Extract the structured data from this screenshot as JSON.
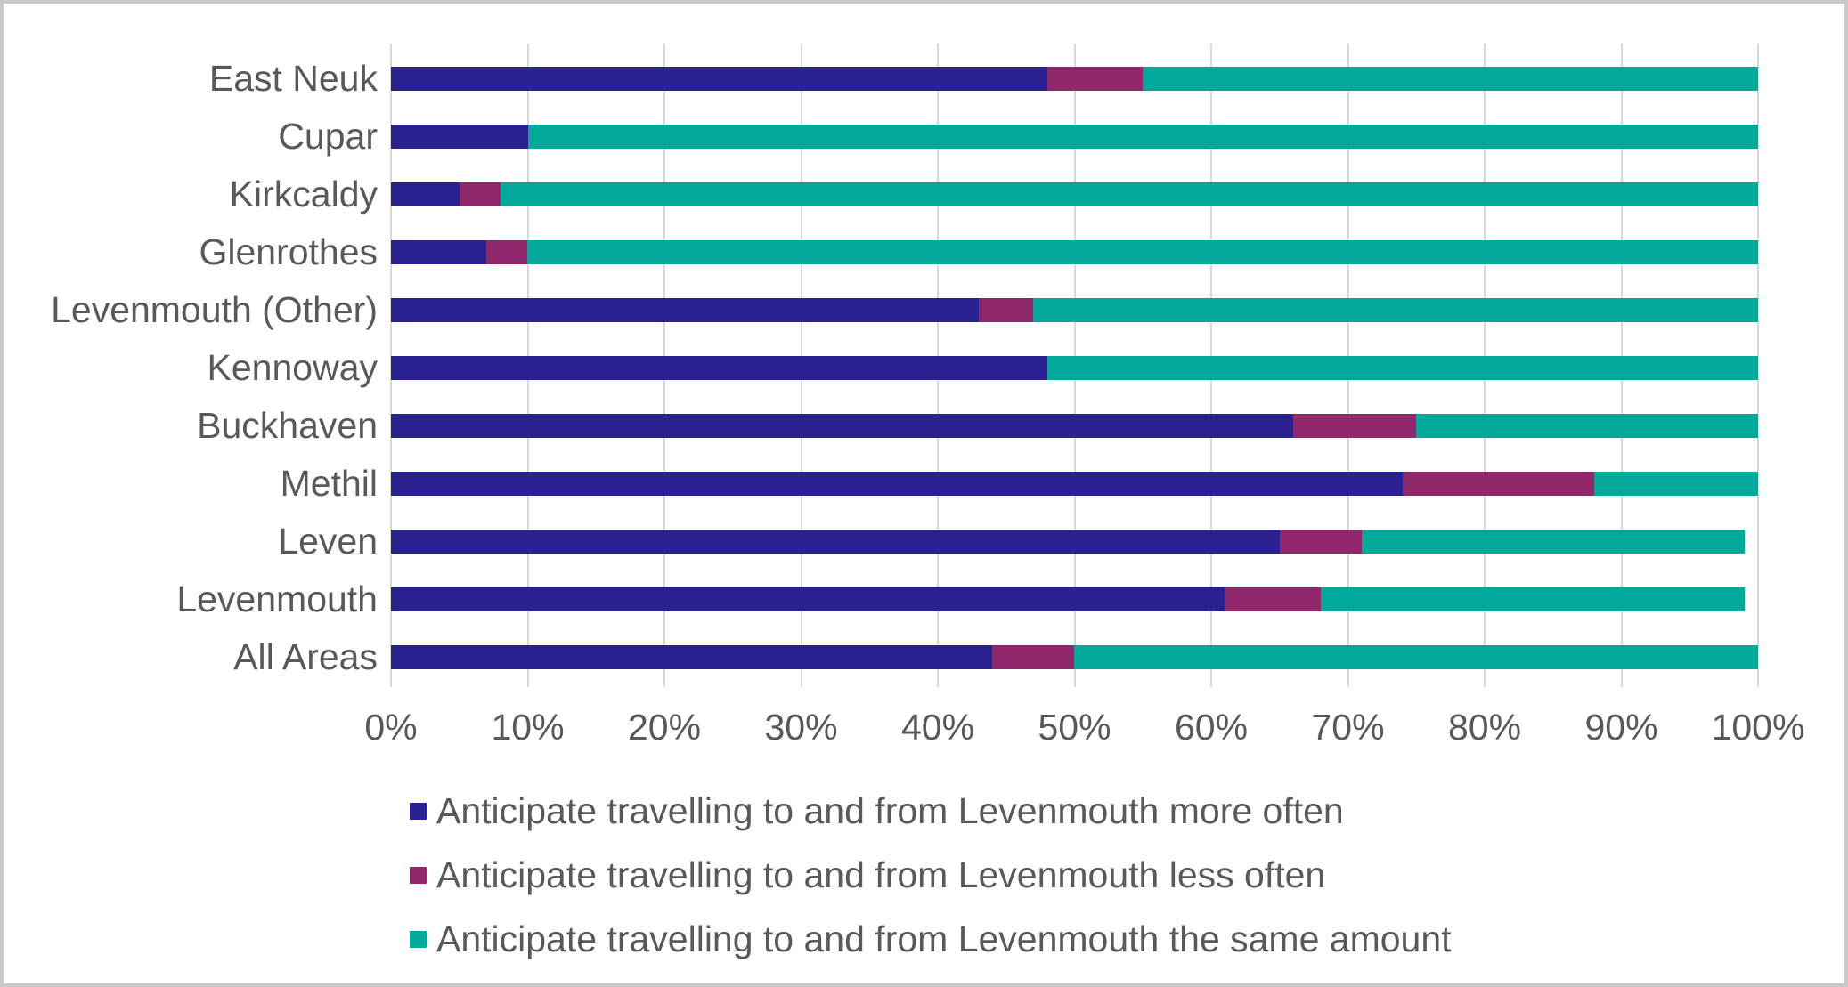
{
  "chart_data": {
    "type": "bar",
    "orientation": "horizontal",
    "stacked": true,
    "value_unit": "percent",
    "categories": [
      "East Neuk",
      "Cupar",
      "Kirkcaldy",
      "Glenrothes",
      "Levenmouth (Other)",
      "Kennoway",
      "Buckhaven",
      "Methil",
      "Leven",
      "Levenmouth",
      "All Areas"
    ],
    "series": [
      {
        "name": "Anticipate travelling to and from Levenmouth more often",
        "color": "#28218F",
        "values": [
          48,
          10,
          5,
          7,
          43,
          48,
          66,
          74,
          65,
          61,
          44
        ]
      },
      {
        "name": "Anticipate travelling to and from Levenmouth less often",
        "color": "#90296C",
        "values": [
          7,
          0,
          3,
          3,
          4,
          0,
          9,
          14,
          6,
          7,
          6
        ]
      },
      {
        "name": "Anticipate travelling to and from Levenmouth the same amount",
        "color": "#00A99A",
        "values": [
          45,
          90,
          92,
          90,
          53,
          52,
          25,
          12,
          28,
          31,
          50
        ]
      }
    ],
    "x_tick_labels": [
      "0%",
      "10%",
      "20%",
      "30%",
      "40%",
      "50%",
      "60%",
      "70%",
      "80%",
      "90%",
      "100%"
    ],
    "xlim": [
      0,
      100
    ],
    "grid": true,
    "legend_position": "bottom-left"
  },
  "style_colors": {
    "grid": "#D9D9D9",
    "text": "#595959",
    "frame_border": "#C9C9C9",
    "background": "#FFFFFF"
  }
}
